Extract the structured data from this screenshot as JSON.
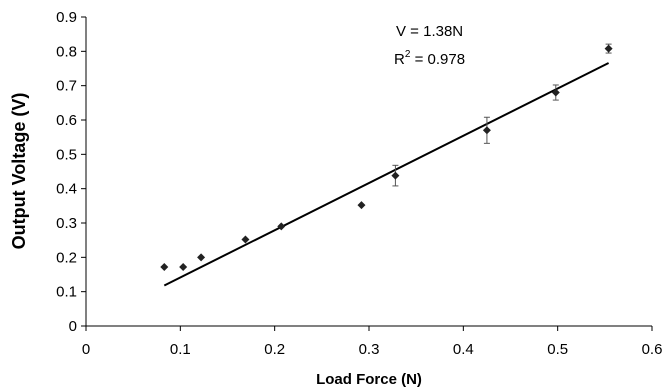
{
  "chart_data": {
    "type": "scatter",
    "title": "",
    "xlabel": "Load Force (N)",
    "ylabel": "Output Voltage (V)",
    "xlim": [
      0,
      0.6
    ],
    "ylim": [
      0,
      0.9
    ],
    "x_ticks": [
      "0",
      "0.1",
      "0.2",
      "0.3",
      "0.4",
      "0.5",
      "0.6"
    ],
    "y_ticks": [
      "0",
      "0.1",
      "0.2",
      "0.3",
      "0.4",
      "0.5",
      "0.6",
      "0.7",
      "0.8",
      "0.9"
    ],
    "grid": false,
    "legend": "none",
    "series": [
      {
        "points": [
          {
            "x": 0.083,
            "y": 0.172,
            "err": 0.0
          },
          {
            "x": 0.103,
            "y": 0.172,
            "err": 0.0
          },
          {
            "x": 0.122,
            "y": 0.2,
            "err": 0.0
          },
          {
            "x": 0.169,
            "y": 0.252,
            "err": 0.0
          },
          {
            "x": 0.207,
            "y": 0.29,
            "err": 0.0
          },
          {
            "x": 0.292,
            "y": 0.352,
            "err": 0.0
          },
          {
            "x": 0.328,
            "y": 0.438,
            "err": 0.03
          },
          {
            "x": 0.425,
            "y": 0.57,
            "err": 0.038
          },
          {
            "x": 0.498,
            "y": 0.68,
            "err": 0.022
          },
          {
            "x": 0.554,
            "y": 0.808,
            "err": 0.013
          }
        ],
        "color": "#222222"
      }
    ],
    "trendline": {
      "x": [
        0.083,
        0.554
      ],
      "y": [
        0.118,
        0.766
      ],
      "color": "#000000"
    },
    "annotations": {
      "equation": "V = 1.38N",
      "r_squared_prefix": "R",
      "r_squared_superscript": "2",
      "r_squared_value": " = 0.978"
    }
  }
}
